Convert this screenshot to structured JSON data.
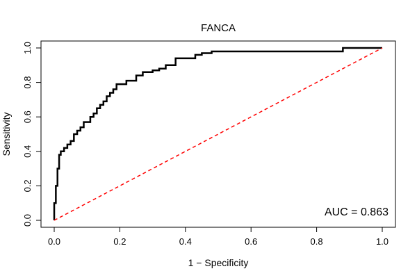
{
  "chart_data": {
    "type": "line",
    "title": "FANCA",
    "xlabel": "1 − Specificity",
    "ylabel": "Sensitivity",
    "xlim": [
      0,
      1
    ],
    "ylim": [
      0,
      1
    ],
    "x_ticks": [
      "0.0",
      "0.2",
      "0.4",
      "0.6",
      "0.8",
      "1.0"
    ],
    "y_ticks": [
      "0.0",
      "0.2",
      "0.4",
      "0.6",
      "0.8",
      "1.0"
    ],
    "grid": false,
    "annotation": "AUC = 0.863",
    "series": [
      {
        "color": "#000000",
        "style": "step",
        "x": [
          0,
          0,
          0.005,
          0.005,
          0.01,
          0.01,
          0.015,
          0.015,
          0.02,
          0.02,
          0.03,
          0.03,
          0.04,
          0.04,
          0.05,
          0.05,
          0.06,
          0.06,
          0.07,
          0.07,
          0.08,
          0.08,
          0.09,
          0.09,
          0.11,
          0.11,
          0.12,
          0.12,
          0.13,
          0.13,
          0.14,
          0.14,
          0.15,
          0.15,
          0.16,
          0.16,
          0.17,
          0.17,
          0.18,
          0.18,
          0.19,
          0.19,
          0.2,
          0.2,
          0.22,
          0.22,
          0.25,
          0.25,
          0.27,
          0.27,
          0.3,
          0.3,
          0.32,
          0.32,
          0.34,
          0.34,
          0.37,
          0.37,
          0.43,
          0.43,
          0.45,
          0.45,
          0.48,
          0.48,
          0.5,
          0.5,
          0.88,
          0.88,
          1.0
        ],
        "y": [
          0,
          0.1,
          0.1,
          0.2,
          0.2,
          0.3,
          0.3,
          0.38,
          0.38,
          0.4,
          0.4,
          0.42,
          0.42,
          0.44,
          0.44,
          0.46,
          0.46,
          0.5,
          0.5,
          0.52,
          0.52,
          0.54,
          0.54,
          0.57,
          0.57,
          0.6,
          0.6,
          0.62,
          0.62,
          0.65,
          0.65,
          0.67,
          0.67,
          0.69,
          0.69,
          0.72,
          0.72,
          0.74,
          0.74,
          0.76,
          0.76,
          0.79,
          0.79,
          0.79,
          0.79,
          0.81,
          0.81,
          0.84,
          0.84,
          0.86,
          0.86,
          0.87,
          0.87,
          0.88,
          0.88,
          0.9,
          0.9,
          0.94,
          0.94,
          0.96,
          0.96,
          0.97,
          0.97,
          0.98,
          0.98,
          0.98,
          0.98,
          1.0,
          1.0
        ]
      },
      {
        "color": "#ff0000",
        "style": "dashed",
        "x": [
          0,
          1
        ],
        "y": [
          0,
          1
        ]
      }
    ]
  }
}
